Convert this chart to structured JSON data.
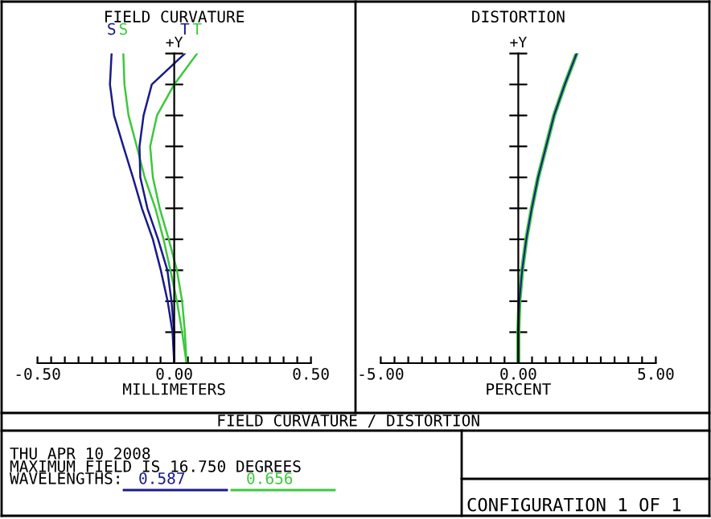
{
  "chart_data": [
    {
      "type": "line",
      "orientation": "horizontal",
      "title": "FIELD CURVATURE",
      "xlabel": "MILLIMETERS",
      "ylabel": "+Y",
      "xlim": [
        -0.5,
        0.5
      ],
      "xticks": [
        {
          "value": -0.5,
          "label": "-0.50"
        },
        {
          "value": -0.45,
          "label": null
        },
        {
          "value": -0.4,
          "label": null
        },
        {
          "value": -0.35,
          "label": null
        },
        {
          "value": -0.3,
          "label": null
        },
        {
          "value": -0.25,
          "label": null
        },
        {
          "value": -0.2,
          "label": null
        },
        {
          "value": -0.15,
          "label": null
        },
        {
          "value": -0.1,
          "label": null
        },
        {
          "value": -0.05,
          "label": null
        },
        {
          "value": 0,
          "label": "0.00"
        },
        {
          "value": 0.05,
          "label": null
        },
        {
          "value": 0.1,
          "label": null
        },
        {
          "value": 0.15,
          "label": null
        },
        {
          "value": 0.2,
          "label": null
        },
        {
          "value": 0.25,
          "label": null
        },
        {
          "value": 0.3,
          "label": null
        },
        {
          "value": 0.35,
          "label": null
        },
        {
          "value": 0.4,
          "label": null
        },
        {
          "value": 0.45,
          "label": null
        },
        {
          "value": 0.5,
          "label": "0.50"
        }
      ],
      "categories": [
        null,
        null,
        null,
        null,
        null,
        null,
        null,
        null,
        null,
        null,
        null
      ],
      "tick_labels": "x",
      "marker": "none",
      "line_style": "solid",
      "series": [
        {
          "name": "S",
          "color": "#1a1a8c",
          "values": [
            -0.229,
            -0.235,
            -0.22,
            -0.186,
            -0.151,
            -0.118,
            -0.078,
            -0.049,
            -0.024,
            -0.006,
            0
          ]
        },
        {
          "name": "S",
          "color": "#3cc83c",
          "values": [
            -0.186,
            -0.182,
            -0.167,
            -0.137,
            -0.108,
            -0.069,
            -0.039,
            -0.014,
            0.01,
            0.029,
            0.045
          ]
        },
        {
          "name": "T",
          "color": "#1a1a8c",
          "values": [
            0.039,
            -0.082,
            -0.112,
            -0.127,
            -0.124,
            -0.098,
            -0.059,
            -0.025,
            -0.01,
            0,
            0
          ]
        },
        {
          "name": "T",
          "color": "#3cc83c",
          "values": [
            0.084,
            0,
            -0.063,
            -0.088,
            -0.078,
            -0.053,
            -0.02,
            0.01,
            0.029,
            0.039,
            0.045
          ]
        }
      ]
    },
    {
      "type": "line",
      "orientation": "horizontal",
      "title": "DISTORTION",
      "xlabel": "PERCENT",
      "ylabel": "+Y",
      "xlim": [
        -5,
        5
      ],
      "xticks": [
        {
          "value": -5,
          "label": "-5.00"
        },
        {
          "value": -4.5,
          "label": null
        },
        {
          "value": -4,
          "label": null
        },
        {
          "value": -3.5,
          "label": null
        },
        {
          "value": -3,
          "label": null
        },
        {
          "value": -2.5,
          "label": null
        },
        {
          "value": -2,
          "label": null
        },
        {
          "value": -1.5,
          "label": null
        },
        {
          "value": -1,
          "label": null
        },
        {
          "value": -0.5,
          "label": null
        },
        {
          "value": 0,
          "label": "0.00"
        },
        {
          "value": 0.5,
          "label": null
        },
        {
          "value": 1,
          "label": null
        },
        {
          "value": 1.5,
          "label": null
        },
        {
          "value": 2,
          "label": null
        },
        {
          "value": 2.5,
          "label": null
        },
        {
          "value": 3,
          "label": null
        },
        {
          "value": 3.5,
          "label": null
        },
        {
          "value": 4,
          "label": null
        },
        {
          "value": 4.5,
          "label": null
        },
        {
          "value": 5,
          "label": "5.00"
        }
      ],
      "categories": [
        null,
        null,
        null,
        null,
        null,
        null,
        null,
        null,
        null,
        null,
        null
      ],
      "tick_labels": "x",
      "marker": "none",
      "line_style": "solid",
      "series": [
        {
          "color": "#3cc83c",
          "values": [
            2.12,
            1.69,
            1.3,
            1.01,
            0.72,
            0.49,
            0.29,
            0.14,
            0.04,
            0,
            0
          ]
        },
        {
          "color": "#1a1a8c",
          "values": [
            2.12,
            1.69,
            1.3,
            1.01,
            0.72,
            0.49,
            0.29,
            0.14,
            0.04,
            0,
            0
          ]
        }
      ]
    },
    {
      "type": "other",
      "title": "FIELD CURVATURE / DISTORTION",
      "annotations": [
        "THU APR 10 2008",
        "MAXIMUM FIELD IS 16.750 DEGREES",
        "CONFIGURATION 1 OF 1"
      ],
      "legend_title": "WAVELENGTHS:",
      "categories": [
        "0.587",
        "0.656"
      ],
      "colors": [
        "#1a1a8c",
        "#3cc83c"
      ]
    }
  ]
}
